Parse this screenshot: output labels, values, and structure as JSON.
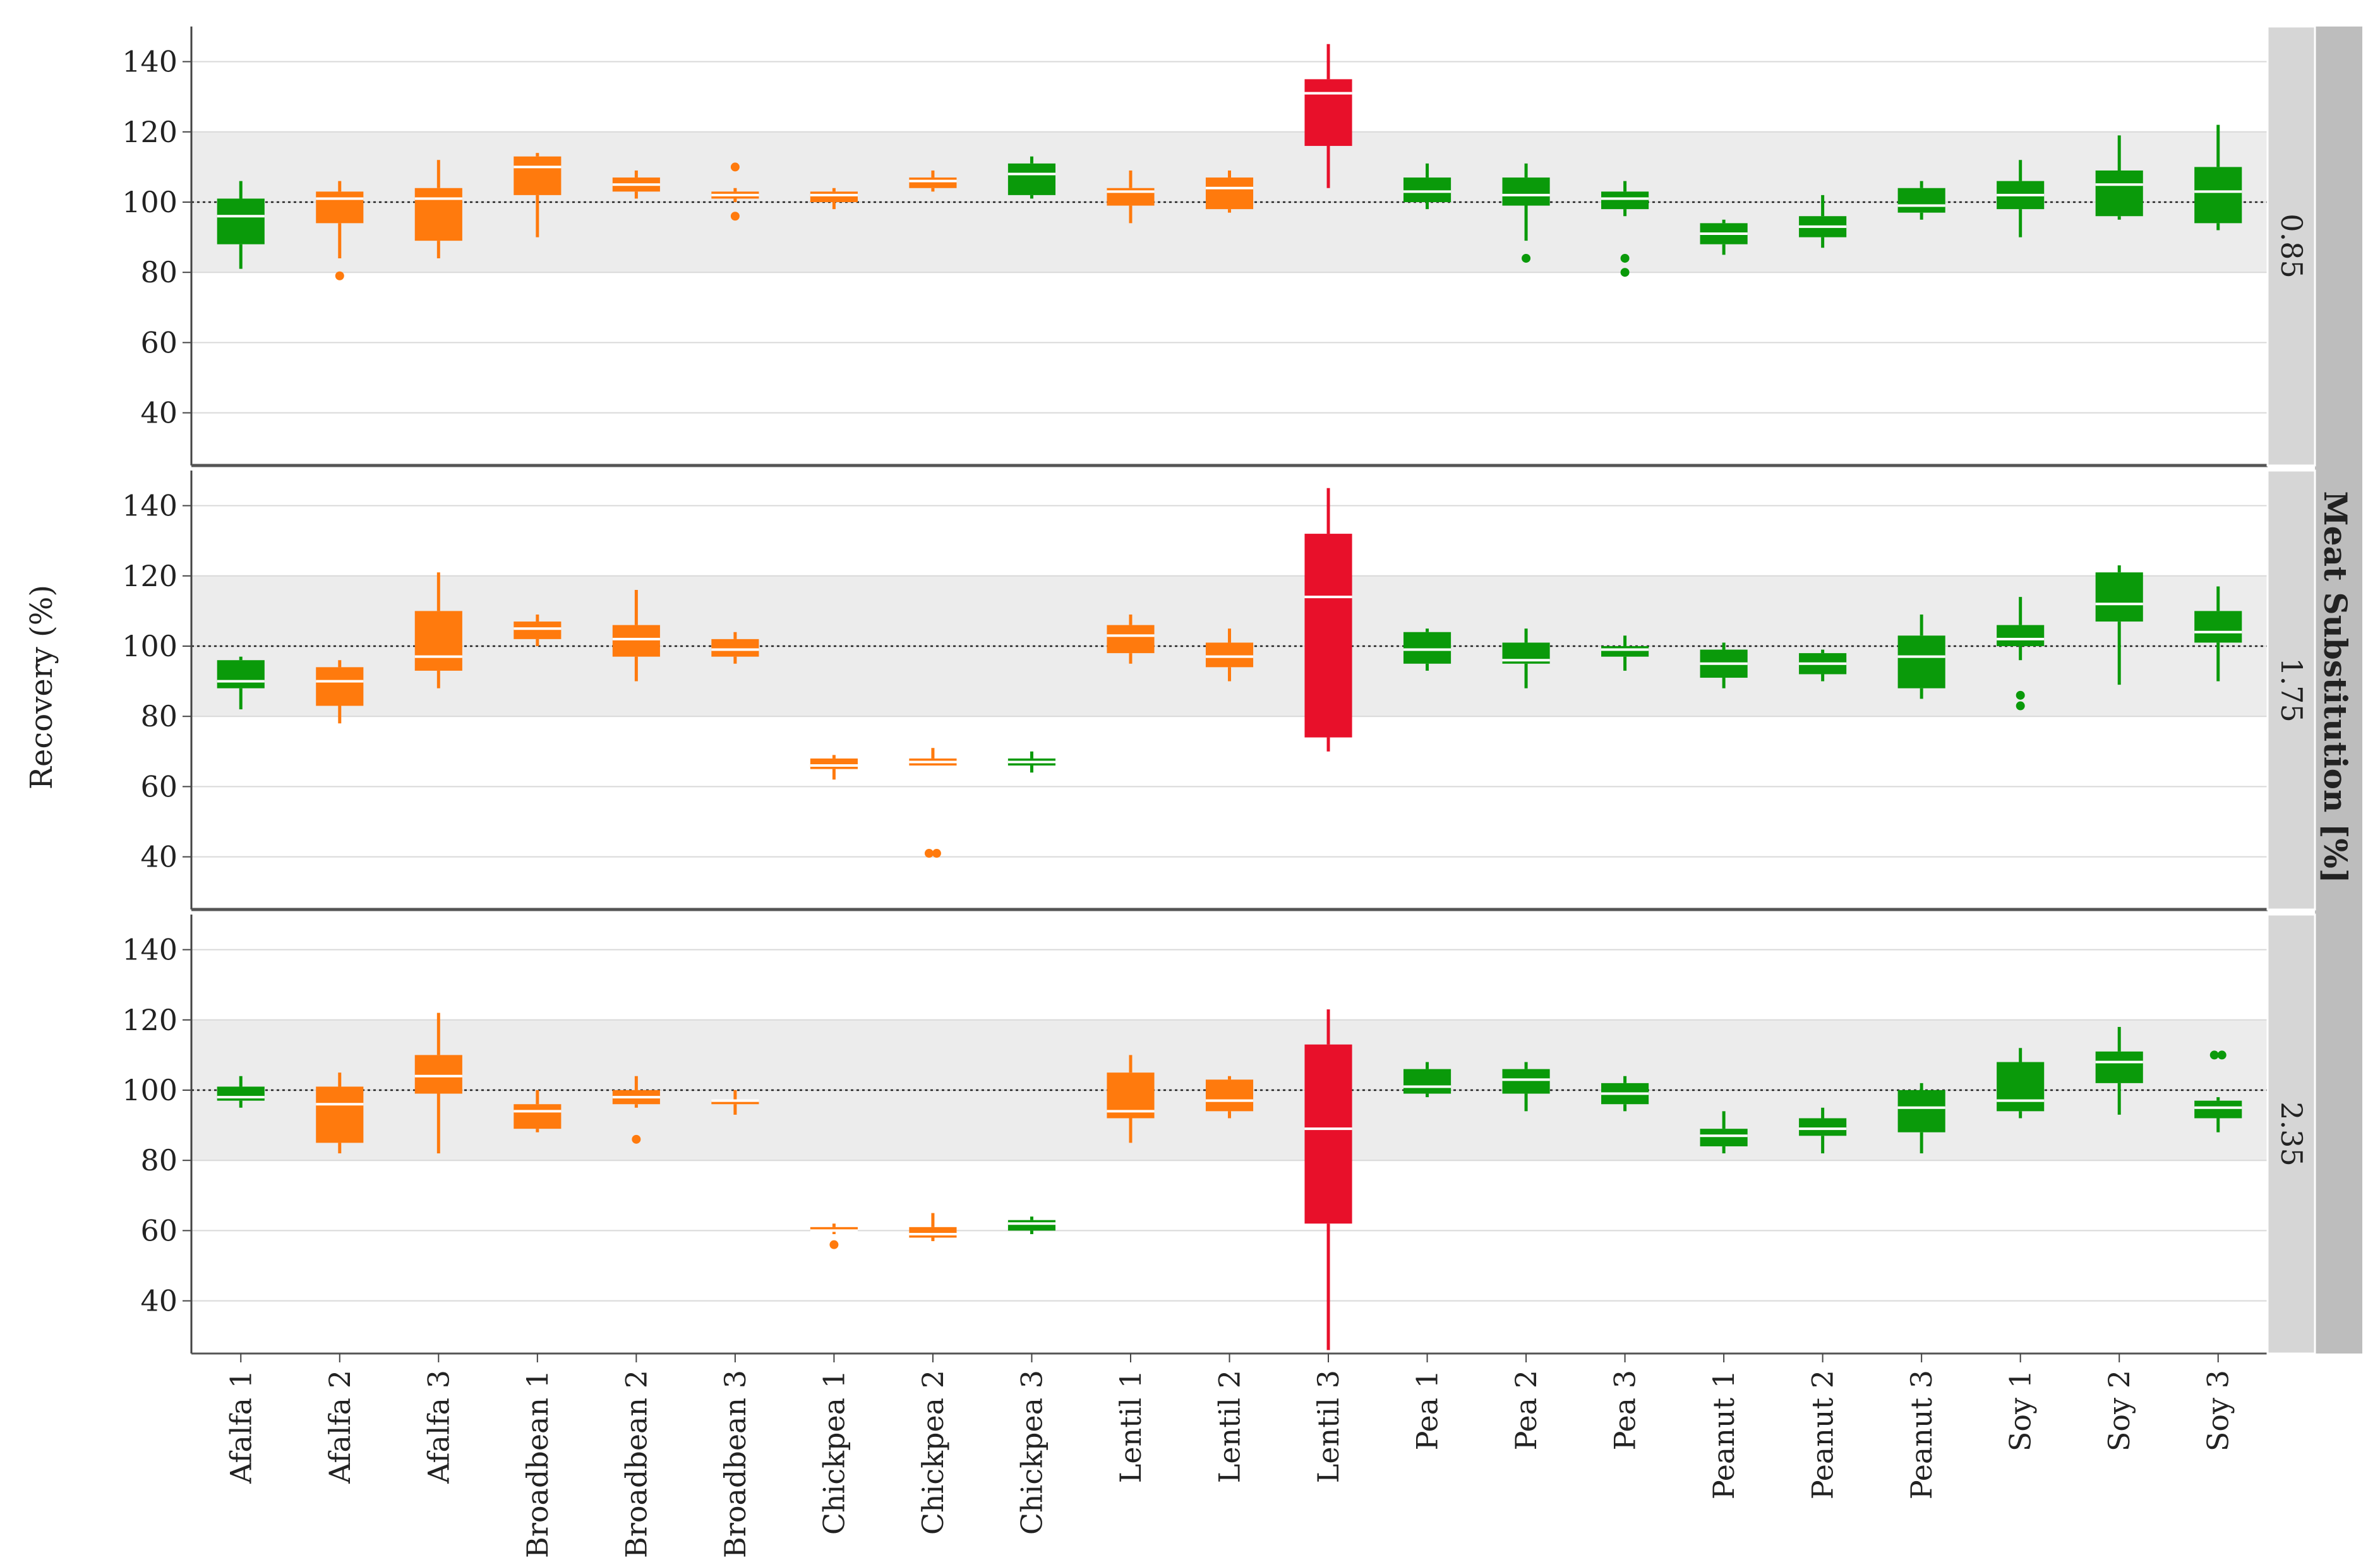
{
  "chart_data": {
    "type": "boxplot",
    "ylabel": "Recovery (%)",
    "facet_title": "Meat Substitution [%]",
    "reference_line": 100,
    "reference_band": [
      80,
      120
    ],
    "ylim": [
      25,
      150
    ],
    "yticks": [
      40,
      60,
      80,
      100,
      120,
      140
    ],
    "categories": [
      "Afalfa 1",
      "Afalfa 2",
      "Afalfa 3",
      "Broadbean 1",
      "Broadbean 2",
      "Broadbean 3",
      "Chickpea 1",
      "Chickpea 2",
      "Chickpea 3",
      "Lentil 1",
      "Lentil 2",
      "Lentil 3",
      "Pea 1",
      "Pea 2",
      "Pea 3",
      "Peanut 1",
      "Peanut 2",
      "Peanut 3",
      "Soy 1",
      "Soy 2",
      "Soy 3"
    ],
    "colors": {
      "green": "#0a9a0a",
      "orange": "#ff7a0d",
      "red": "#e8102a",
      "band": "#ececec",
      "strip_light": "#d6d6d6",
      "strip_dark": "#bdbdbd"
    },
    "panels": [
      {
        "label": "0.85",
        "boxes": [
          {
            "category": "Afalfa 1",
            "color": "green",
            "min": 81,
            "q1": 88,
            "median": 96,
            "q3": 101,
            "max": 106,
            "outliers": []
          },
          {
            "category": "Afalfa 2",
            "color": "orange",
            "min": 84,
            "q1": 94,
            "median": 101,
            "q3": 103,
            "max": 106,
            "outliers": [
              79
            ]
          },
          {
            "category": "Afalfa 3",
            "color": "orange",
            "min": 84,
            "q1": 89,
            "median": 101,
            "q3": 104,
            "max": 112,
            "outliers": []
          },
          {
            "category": "Broadbean 1",
            "color": "orange",
            "min": 90,
            "q1": 102,
            "median": 110,
            "q3": 113,
            "max": 114,
            "outliers": []
          },
          {
            "category": "Broadbean 2",
            "color": "orange",
            "min": 101,
            "q1": 103,
            "median": 105,
            "q3": 107,
            "max": 109,
            "outliers": []
          },
          {
            "category": "Broadbean 3",
            "color": "orange",
            "min": 100,
            "q1": 101,
            "median": 102,
            "q3": 103,
            "max": 104,
            "outliers": [
              110,
              96
            ]
          },
          {
            "category": "Chickpea 1",
            "color": "orange",
            "min": 98,
            "q1": 100,
            "median": 102,
            "q3": 103,
            "max": 104,
            "outliers": []
          },
          {
            "category": "Chickpea 2",
            "color": "orange",
            "min": 103,
            "q1": 104,
            "median": 106,
            "q3": 107,
            "max": 109,
            "outliers": []
          },
          {
            "category": "Chickpea 3",
            "color": "green",
            "min": 101,
            "q1": 102,
            "median": 108,
            "q3": 111,
            "max": 113,
            "outliers": []
          },
          {
            "category": "Lentil 1",
            "color": "orange",
            "min": 94,
            "q1": 99,
            "median": 103,
            "q3": 104,
            "max": 109,
            "outliers": []
          },
          {
            "category": "Lentil 2",
            "color": "orange",
            "min": 97,
            "q1": 98,
            "median": 104,
            "q3": 107,
            "max": 109,
            "outliers": []
          },
          {
            "category": "Lentil 3",
            "color": "red",
            "min": 104,
            "q1": 116,
            "median": 131,
            "q3": 135,
            "max": 145,
            "outliers": []
          },
          {
            "category": "Pea 1",
            "color": "green",
            "min": 98,
            "q1": 100,
            "median": 103,
            "q3": 107,
            "max": 111,
            "outliers": []
          },
          {
            "category": "Pea 2",
            "color": "green",
            "min": 89,
            "q1": 99,
            "median": 102,
            "q3": 107,
            "max": 111,
            "outliers": [
              84
            ]
          },
          {
            "category": "Pea 3",
            "color": "green",
            "min": 96,
            "q1": 98,
            "median": 101,
            "q3": 103,
            "max": 106,
            "outliers": [
              84,
              80
            ]
          },
          {
            "category": "Peanut 1",
            "color": "green",
            "min": 85,
            "q1": 88,
            "median": 91,
            "q3": 94,
            "max": 95,
            "outliers": []
          },
          {
            "category": "Peanut 2",
            "color": "green",
            "min": 87,
            "q1": 90,
            "median": 93,
            "q3": 96,
            "max": 102,
            "outliers": []
          },
          {
            "category": "Peanut 3",
            "color": "green",
            "min": 95,
            "q1": 97,
            "median": 99,
            "q3": 104,
            "max": 106,
            "outliers": []
          },
          {
            "category": "Soy 1",
            "color": "green",
            "min": 90,
            "q1": 98,
            "median": 102,
            "q3": 106,
            "max": 112,
            "outliers": []
          },
          {
            "category": "Soy 2",
            "color": "green",
            "min": 95,
            "q1": 96,
            "median": 105,
            "q3": 109,
            "max": 119,
            "outliers": []
          },
          {
            "category": "Soy 3",
            "color": "green",
            "min": 92,
            "q1": 94,
            "median": 103,
            "q3": 110,
            "max": 122,
            "outliers": []
          }
        ]
      },
      {
        "label": "1.75",
        "boxes": [
          {
            "category": "Afalfa 1",
            "color": "green",
            "min": 82,
            "q1": 88,
            "median": 90,
            "q3": 96,
            "max": 97,
            "outliers": []
          },
          {
            "category": "Afalfa 2",
            "color": "orange",
            "min": 78,
            "q1": 83,
            "median": 90,
            "q3": 94,
            "max": 96,
            "outliers": []
          },
          {
            "category": "Afalfa 3",
            "color": "orange",
            "min": 88,
            "q1": 93,
            "median": 97,
            "q3": 110,
            "max": 121,
            "outliers": []
          },
          {
            "category": "Broadbean 1",
            "color": "orange",
            "min": 100,
            "q1": 102,
            "median": 105,
            "q3": 107,
            "max": 109,
            "outliers": []
          },
          {
            "category": "Broadbean 2",
            "color": "orange",
            "min": 90,
            "q1": 97,
            "median": 102,
            "q3": 106,
            "max": 116,
            "outliers": []
          },
          {
            "category": "Broadbean 3",
            "color": "orange",
            "min": 95,
            "q1": 97,
            "median": 99,
            "q3": 102,
            "max": 104,
            "outliers": []
          },
          {
            "category": "Chickpea 1",
            "color": "orange",
            "min": 62,
            "q1": 65,
            "median": 66,
            "q3": 68,
            "max": 69,
            "outliers": []
          },
          {
            "category": "Chickpea 2",
            "color": "orange",
            "min": 66,
            "q1": 66,
            "median": 67,
            "q3": 68,
            "max": 71,
            "outliers": [
              41,
              41
            ]
          },
          {
            "category": "Chickpea 3",
            "color": "green",
            "min": 64,
            "q1": 66,
            "median": 67,
            "q3": 68,
            "max": 70,
            "outliers": []
          },
          {
            "category": "Lentil 1",
            "color": "orange",
            "min": 95,
            "q1": 98,
            "median": 103,
            "q3": 106,
            "max": 109,
            "outliers": []
          },
          {
            "category": "Lentil 2",
            "color": "orange",
            "min": 90,
            "q1": 94,
            "median": 97,
            "q3": 101,
            "max": 105,
            "outliers": []
          },
          {
            "category": "Lentil 3",
            "color": "red",
            "min": 70,
            "q1": 74,
            "median": 114,
            "q3": 132,
            "max": 145,
            "outliers": []
          },
          {
            "category": "Pea 1",
            "color": "green",
            "min": 93,
            "q1": 95,
            "median": 99,
            "q3": 104,
            "max": 105,
            "outliers": []
          },
          {
            "category": "Pea 2",
            "color": "green",
            "min": 88,
            "q1": 95,
            "median": 96,
            "q3": 101,
            "max": 105,
            "outliers": []
          },
          {
            "category": "Pea 3",
            "color": "green",
            "min": 93,
            "q1": 97,
            "median": 99,
            "q3": 100,
            "max": 103,
            "outliers": []
          },
          {
            "category": "Peanut 1",
            "color": "green",
            "min": 88,
            "q1": 91,
            "median": 95,
            "q3": 99,
            "max": 101,
            "outliers": []
          },
          {
            "category": "Peanut 2",
            "color": "green",
            "min": 90,
            "q1": 92,
            "median": 95,
            "q3": 98,
            "max": 99,
            "outliers": []
          },
          {
            "category": "Peanut 3",
            "color": "green",
            "min": 85,
            "q1": 88,
            "median": 97,
            "q3": 103,
            "max": 109,
            "outliers": []
          },
          {
            "category": "Soy 1",
            "color": "green",
            "min": 96,
            "q1": 100,
            "median": 102,
            "q3": 106,
            "max": 114,
            "outliers": [
              86,
              83
            ]
          },
          {
            "category": "Soy 2",
            "color": "green",
            "min": 89,
            "q1": 107,
            "median": 112,
            "q3": 121,
            "max": 123,
            "outliers": []
          },
          {
            "category": "Soy 3",
            "color": "green",
            "min": 90,
            "q1": 101,
            "median": 104,
            "q3": 110,
            "max": 117,
            "outliers": []
          }
        ]
      },
      {
        "label": "2.35",
        "boxes": [
          {
            "category": "Afalfa 1",
            "color": "green",
            "min": 95,
            "q1": 97,
            "median": 98,
            "q3": 101,
            "max": 104,
            "outliers": []
          },
          {
            "category": "Afalfa 2",
            "color": "orange",
            "min": 82,
            "q1": 85,
            "median": 96,
            "q3": 101,
            "max": 105,
            "outliers": []
          },
          {
            "category": "Afalfa 3",
            "color": "orange",
            "min": 82,
            "q1": 99,
            "median": 104,
            "q3": 110,
            "max": 122,
            "outliers": []
          },
          {
            "category": "Broadbean 1",
            "color": "orange",
            "min": 88,
            "q1": 89,
            "median": 94,
            "q3": 96,
            "max": 100,
            "outliers": []
          },
          {
            "category": "Broadbean 2",
            "color": "orange",
            "min": 95,
            "q1": 96,
            "median": 98,
            "q3": 100,
            "max": 104,
            "outliers": [
              86
            ]
          },
          {
            "category": "Broadbean 3",
            "color": "orange",
            "min": 93,
            "q1": 96,
            "median": 97,
            "q3": 97,
            "max": 100,
            "outliers": []
          },
          {
            "category": "Chickpea 1",
            "color": "orange",
            "min": 59,
            "q1": 60,
            "median": 60,
            "q3": 61,
            "max": 62,
            "outliers": [
              56
            ]
          },
          {
            "category": "Chickpea 2",
            "color": "orange",
            "min": 57,
            "q1": 58,
            "median": 59,
            "q3": 61,
            "max": 65,
            "outliers": []
          },
          {
            "category": "Chickpea 3",
            "color": "green",
            "min": 59,
            "q1": 60,
            "median": 62,
            "q3": 63,
            "max": 64,
            "outliers": []
          },
          {
            "category": "Lentil 1",
            "color": "orange",
            "min": 85,
            "q1": 92,
            "median": 94,
            "q3": 105,
            "max": 110,
            "outliers": []
          },
          {
            "category": "Lentil 2",
            "color": "orange",
            "min": 92,
            "q1": 94,
            "median": 97,
            "q3": 103,
            "max": 104,
            "outliers": []
          },
          {
            "category": "Lentil 3",
            "color": "red",
            "min": 26,
            "q1": 62,
            "median": 89,
            "q3": 113,
            "max": 123,
            "outliers": []
          },
          {
            "category": "Pea 1",
            "color": "green",
            "min": 98,
            "q1": 99,
            "median": 101,
            "q3": 106,
            "max": 108,
            "outliers": []
          },
          {
            "category": "Pea 2",
            "color": "green",
            "min": 94,
            "q1": 99,
            "median": 103,
            "q3": 106,
            "max": 108,
            "outliers": []
          },
          {
            "category": "Pea 3",
            "color": "green",
            "min": 94,
            "q1": 96,
            "median": 99,
            "q3": 102,
            "max": 104,
            "outliers": []
          },
          {
            "category": "Peanut 1",
            "color": "green",
            "min": 82,
            "q1": 84,
            "median": 87,
            "q3": 89,
            "max": 94,
            "outliers": []
          },
          {
            "category": "Peanut 2",
            "color": "green",
            "min": 82,
            "q1": 87,
            "median": 89,
            "q3": 92,
            "max": 95,
            "outliers": []
          },
          {
            "category": "Peanut 3",
            "color": "green",
            "min": 82,
            "q1": 88,
            "median": 95,
            "q3": 100,
            "max": 102,
            "outliers": []
          },
          {
            "category": "Soy 1",
            "color": "green",
            "min": 92,
            "q1": 94,
            "median": 97,
            "q3": 108,
            "max": 112,
            "outliers": []
          },
          {
            "category": "Soy 2",
            "color": "green",
            "min": 93,
            "q1": 102,
            "median": 108,
            "q3": 111,
            "max": 118,
            "outliers": []
          },
          {
            "category": "Soy 3",
            "color": "green",
            "min": 88,
            "q1": 92,
            "median": 95,
            "q3": 97,
            "max": 98,
            "outliers": [
              110,
              110
            ]
          }
        ]
      }
    ]
  }
}
